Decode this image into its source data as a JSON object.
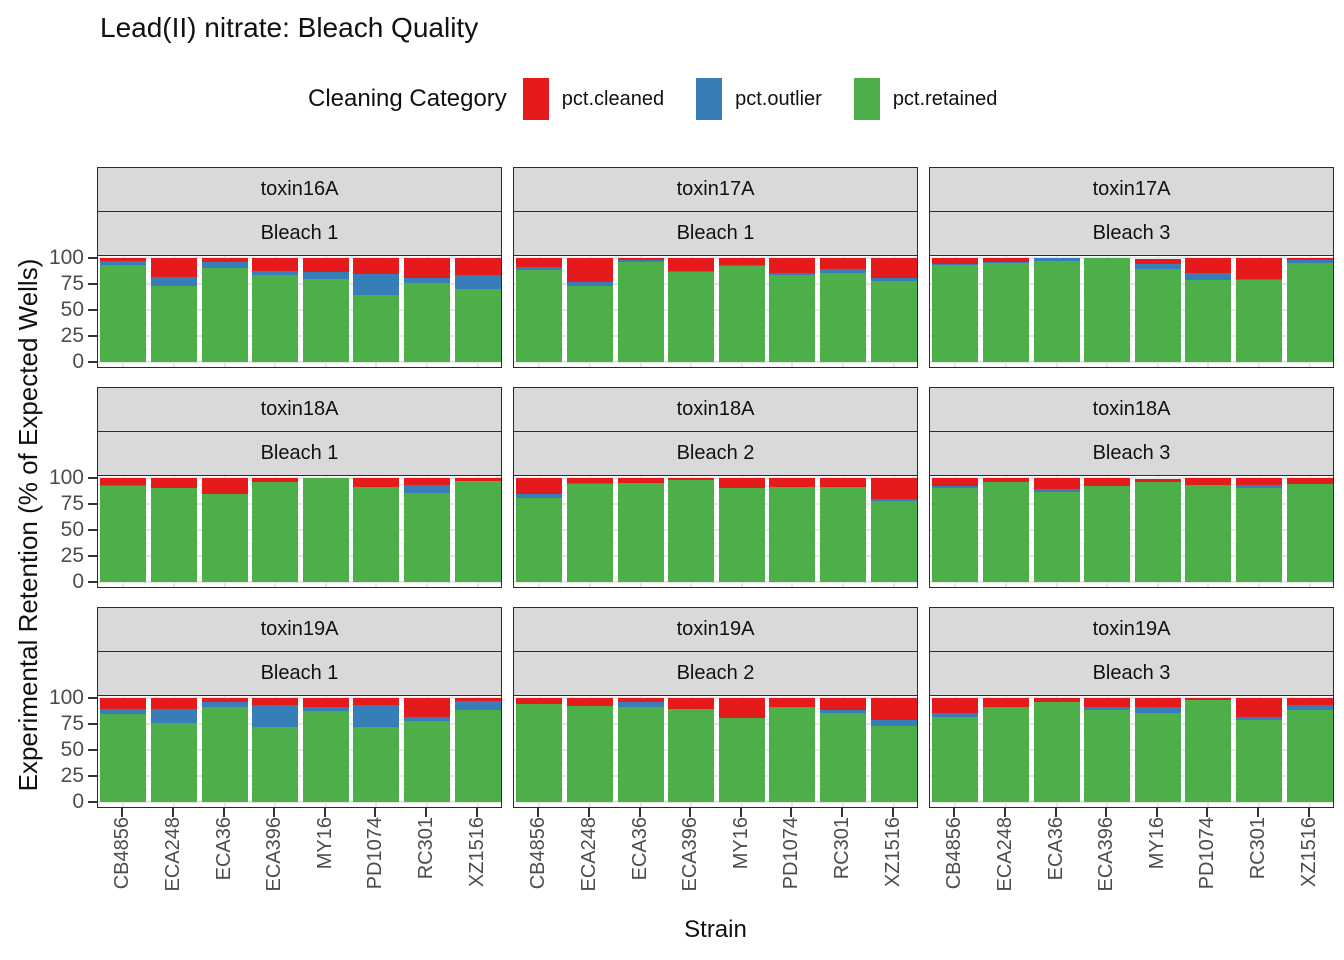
{
  "title": "Lead(II) nitrate: Bleach Quality",
  "legend": {
    "title": "Cleaning Category",
    "entries": [
      {
        "label": "pct.cleaned",
        "color": "#E41A1C"
      },
      {
        "label": "pct.outlier",
        "color": "#377EB8"
      },
      {
        "label": "pct.retained",
        "color": "#4DAF4A"
      }
    ]
  },
  "axes": {
    "x_title": "Strain",
    "y_title": "Experimental Retention (% of Expected Wells)",
    "y_ticks": [
      0,
      25,
      50,
      75,
      100
    ],
    "x_categories": [
      "CB4856",
      "ECA248",
      "ECA36",
      "ECA396",
      "MY16",
      "PD1074",
      "RC301",
      "XZ1516"
    ]
  },
  "chart_data": {
    "type": "bar",
    "stacked": true,
    "ylim": [
      0,
      100
    ],
    "grid": true,
    "legend_position": "top",
    "stack_order_bottom_to_top": [
      "pct.retained",
      "pct.outlier",
      "pct.cleaned"
    ],
    "categories": [
      "CB4856",
      "ECA248",
      "ECA36",
      "ECA396",
      "MY16",
      "PD1074",
      "RC301",
      "XZ1516"
    ],
    "facet_rows": 3,
    "facet_cols": 3,
    "facets": [
      {
        "toxin": "toxin16A",
        "bleach": "Bleach 1",
        "pct_retained": [
          93,
          73,
          90,
          83,
          80,
          64,
          76,
          70
        ],
        "pct_outlier": [
          4,
          9,
          6,
          4,
          6,
          20,
          5,
          13
        ],
        "pct_cleaned": [
          3,
          18,
          4,
          13,
          14,
          16,
          19,
          17
        ]
      },
      {
        "toxin": "toxin17A",
        "bleach": "Bleach 1",
        "pct_retained": [
          88,
          73,
          96,
          86,
          92,
          83,
          85,
          78
        ],
        "pct_outlier": [
          3,
          4,
          2,
          1,
          1,
          2,
          4,
          3
        ],
        "pct_cleaned": [
          9,
          23,
          2,
          13,
          7,
          15,
          11,
          19
        ]
      },
      {
        "toxin": "toxin17A",
        "bleach": "Bleach 3",
        "pct_retained": [
          93,
          95,
          97,
          100,
          89,
          79,
          79,
          95
        ],
        "pct_outlier": [
          1,
          1,
          3,
          0,
          5,
          6,
          1,
          3
        ],
        "pct_cleaned": [
          6,
          4,
          0,
          0,
          5,
          15,
          20,
          2
        ]
      },
      {
        "toxin": "toxin18A",
        "bleach": "Bleach 1",
        "pct_retained": [
          92,
          90,
          84,
          96,
          100,
          91,
          85,
          97
        ],
        "pct_outlier": [
          1,
          0,
          0,
          0,
          0,
          0,
          8,
          0
        ],
        "pct_cleaned": [
          7,
          10,
          16,
          4,
          0,
          9,
          7,
          3
        ]
      },
      {
        "toxin": "toxin18A",
        "bleach": "Bleach 2",
        "pct_retained": [
          81,
          94,
          95,
          98,
          90,
          91,
          91,
          78
        ],
        "pct_outlier": [
          3,
          1,
          0,
          0,
          0,
          0,
          0,
          2
        ],
        "pct_cleaned": [
          16,
          5,
          5,
          2,
          10,
          9,
          9,
          20
        ]
      },
      {
        "toxin": "toxin18A",
        "bleach": "Bleach 3",
        "pct_retained": [
          90,
          96,
          86,
          92,
          96,
          93,
          90,
          94
        ],
        "pct_outlier": [
          2,
          0,
          3,
          0,
          0,
          0,
          3,
          0
        ],
        "pct_cleaned": [
          8,
          4,
          11,
          8,
          3,
          7,
          7,
          6
        ]
      },
      {
        "toxin": "toxin19A",
        "bleach": "Bleach 1",
        "pct_retained": [
          84,
          76,
          91,
          72,
          87,
          72,
          78,
          88
        ],
        "pct_outlier": [
          5,
          13,
          5,
          21,
          4,
          21,
          4,
          9
        ],
        "pct_cleaned": [
          11,
          11,
          4,
          7,
          9,
          7,
          18,
          3
        ]
      },
      {
        "toxin": "toxin19A",
        "bleach": "Bleach 2",
        "pct_retained": [
          94,
          92,
          91,
          89,
          81,
          91,
          85,
          73
        ],
        "pct_outlier": [
          0,
          0,
          5,
          0,
          0,
          0,
          3,
          6
        ],
        "pct_cleaned": [
          6,
          8,
          4,
          11,
          19,
          9,
          12,
          21
        ]
      },
      {
        "toxin": "toxin19A",
        "bleach": "Bleach 3",
        "pct_retained": [
          82,
          91,
          96,
          88,
          85,
          98,
          79,
          88
        ],
        "pct_outlier": [
          3,
          0,
          0,
          3,
          6,
          0,
          3,
          5
        ],
        "pct_cleaned": [
          15,
          9,
          4,
          9,
          9,
          2,
          18,
          7
        ]
      }
    ]
  }
}
